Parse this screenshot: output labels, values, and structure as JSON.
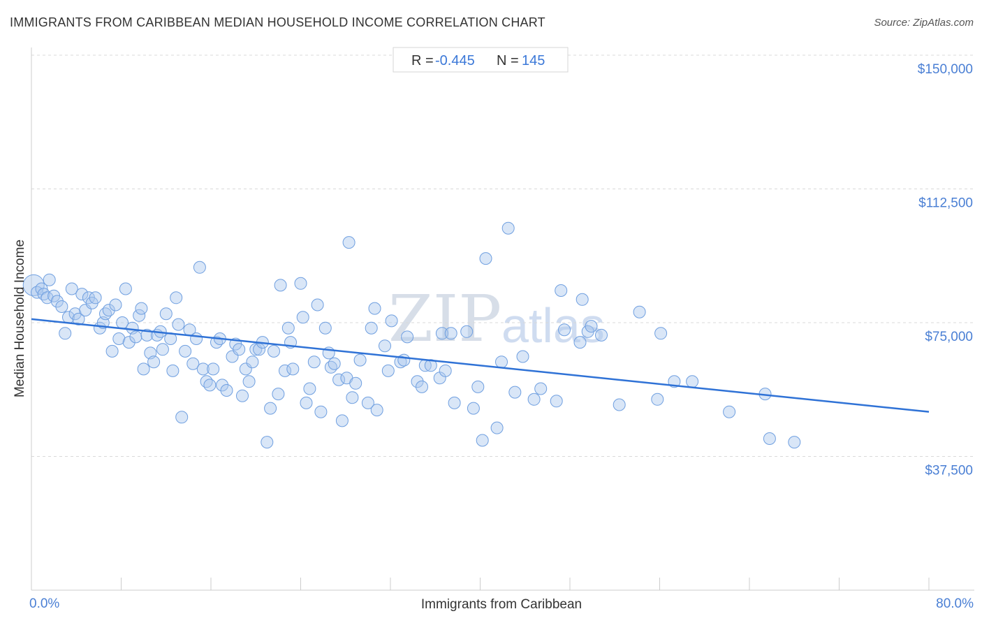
{
  "title": "IMMIGRANTS FROM CARIBBEAN MEDIAN HOUSEHOLD INCOME CORRELATION CHART",
  "source": "Source: ZipAtlas.com",
  "stats": {
    "r_label": "R =",
    "r_value": "-0.445",
    "n_label": "N =",
    "n_value": "145"
  },
  "watermark": {
    "zip": "ZIP",
    "atlas": "atlas"
  },
  "colors": {
    "point_fill": "#aac8ee",
    "point_stroke": "#6f9fe0",
    "trend": "#2f72d6",
    "tick_label": "#4a7fd4",
    "grid": "#d9d9d9"
  },
  "chart_data": {
    "type": "scatter",
    "title": "IMMIGRANTS FROM CARIBBEAN MEDIAN HOUSEHOLD INCOME CORRELATION CHART",
    "xlabel": "Immigrants from Caribbean",
    "ylabel": "Median Household Income",
    "xlim": [
      0,
      80
    ],
    "ylim": [
      0,
      157500
    ],
    "x_tick_labels": [
      "0.0%",
      "80.0%"
    ],
    "y_ticks": [
      37500,
      75000,
      112500,
      150000
    ],
    "y_tick_labels": [
      "$37,500",
      "$75,000",
      "$112,500",
      "$150,000"
    ],
    "grid": true,
    "trend_line": {
      "x": [
        0,
        80
      ],
      "y": [
        76000,
        50000
      ]
    },
    "points": [
      [
        0.2,
        85500
      ],
      [
        0.5,
        83500
      ],
      [
        0.9,
        84500
      ],
      [
        1.1,
        83000
      ],
      [
        1.4,
        82000
      ],
      [
        1.6,
        87000
      ],
      [
        2.0,
        82500
      ],
      [
        2.3,
        81000
      ],
      [
        2.7,
        79500
      ],
      [
        3.0,
        72000
      ],
      [
        3.3,
        76500
      ],
      [
        3.6,
        84500
      ],
      [
        3.9,
        77500
      ],
      [
        4.2,
        76000
      ],
      [
        4.5,
        83000
      ],
      [
        4.8,
        78500
      ],
      [
        5.1,
        82000
      ],
      [
        5.4,
        80500
      ],
      [
        5.7,
        82000
      ],
      [
        6.1,
        73500
      ],
      [
        6.4,
        75000
      ],
      [
        6.6,
        77500
      ],
      [
        6.9,
        78500
      ],
      [
        7.2,
        67000
      ],
      [
        7.5,
        80000
      ],
      [
        7.8,
        70500
      ],
      [
        8.1,
        75000
      ],
      [
        8.4,
        84500
      ],
      [
        8.7,
        69500
      ],
      [
        9.0,
        73500
      ],
      [
        9.3,
        71000
      ],
      [
        9.6,
        77000
      ],
      [
        9.8,
        79000
      ],
      [
        10.0,
        62000
      ],
      [
        10.3,
        71500
      ],
      [
        10.6,
        66500
      ],
      [
        10.9,
        64000
      ],
      [
        11.2,
        71500
      ],
      [
        11.5,
        72500
      ],
      [
        11.7,
        67500
      ],
      [
        12.0,
        77500
      ],
      [
        12.4,
        70500
      ],
      [
        12.6,
        61500
      ],
      [
        12.9,
        82000
      ],
      [
        13.1,
        74500
      ],
      [
        13.4,
        48500
      ],
      [
        13.7,
        67000
      ],
      [
        14.1,
        73000
      ],
      [
        14.4,
        63500
      ],
      [
        14.7,
        70500
      ],
      [
        15.0,
        90500
      ],
      [
        15.3,
        62000
      ],
      [
        15.6,
        58500
      ],
      [
        15.9,
        57500
      ],
      [
        16.2,
        62000
      ],
      [
        16.5,
        69500
      ],
      [
        16.8,
        70500
      ],
      [
        17.0,
        57500
      ],
      [
        17.4,
        56000
      ],
      [
        17.9,
        65500
      ],
      [
        18.2,
        69000
      ],
      [
        18.5,
        67500
      ],
      [
        18.8,
        54500
      ],
      [
        19.1,
        62000
      ],
      [
        19.4,
        58500
      ],
      [
        19.7,
        64000
      ],
      [
        20.0,
        67500
      ],
      [
        20.3,
        67500
      ],
      [
        20.6,
        69500
      ],
      [
        21.0,
        41500
      ],
      [
        21.3,
        51000
      ],
      [
        21.6,
        67000
      ],
      [
        22.0,
        55000
      ],
      [
        22.2,
        85500
      ],
      [
        22.6,
        61500
      ],
      [
        22.9,
        73500
      ],
      [
        23.1,
        69500
      ],
      [
        23.3,
        62000
      ],
      [
        24.0,
        86000
      ],
      [
        24.2,
        76500
      ],
      [
        24.5,
        52500
      ],
      [
        24.8,
        56500
      ],
      [
        25.2,
        64000
      ],
      [
        25.5,
        80000
      ],
      [
        25.8,
        50000
      ],
      [
        26.2,
        73500
      ],
      [
        26.5,
        66500
      ],
      [
        26.7,
        62500
      ],
      [
        27.0,
        63500
      ],
      [
        27.4,
        59000
      ],
      [
        27.7,
        47500
      ],
      [
        28.1,
        59500
      ],
      [
        28.3,
        97500
      ],
      [
        28.6,
        54000
      ],
      [
        28.9,
        58000
      ],
      [
        29.3,
        64500
      ],
      [
        30.0,
        52500
      ],
      [
        30.3,
        73500
      ],
      [
        30.6,
        79000
      ],
      [
        30.8,
        50500
      ],
      [
        31.5,
        68500
      ],
      [
        31.8,
        61500
      ],
      [
        32.1,
        75500
      ],
      [
        32.9,
        64000
      ],
      [
        33.2,
        64500
      ],
      [
        33.5,
        71000
      ],
      [
        34.4,
        58500
      ],
      [
        34.8,
        57000
      ],
      [
        35.1,
        63000
      ],
      [
        35.6,
        63000
      ],
      [
        36.4,
        59500
      ],
      [
        36.6,
        72000
      ],
      [
        36.9,
        61500
      ],
      [
        37.4,
        72000
      ],
      [
        37.7,
        52500
      ],
      [
        38.8,
        72500
      ],
      [
        39.4,
        51000
      ],
      [
        39.8,
        57000
      ],
      [
        40.2,
        42000
      ],
      [
        40.5,
        93000
      ],
      [
        41.5,
        45500
      ],
      [
        41.9,
        64000
      ],
      [
        42.5,
        101500
      ],
      [
        43.1,
        55500
      ],
      [
        43.8,
        65500
      ],
      [
        44.8,
        53500
      ],
      [
        45.4,
        56500
      ],
      [
        46.8,
        53000
      ],
      [
        47.2,
        84000
      ],
      [
        47.5,
        73000
      ],
      [
        48.9,
        69500
      ],
      [
        49.1,
        81500
      ],
      [
        49.6,
        72500
      ],
      [
        49.9,
        74000
      ],
      [
        50.8,
        71500
      ],
      [
        52.4,
        52000
      ],
      [
        54.2,
        78000
      ],
      [
        55.8,
        53500
      ],
      [
        56.1,
        72000
      ],
      [
        57.3,
        58500
      ],
      [
        58.9,
        58500
      ],
      [
        62.2,
        50000
      ],
      [
        65.4,
        55000
      ],
      [
        65.8,
        42500
      ],
      [
        68.0,
        41500
      ]
    ]
  }
}
